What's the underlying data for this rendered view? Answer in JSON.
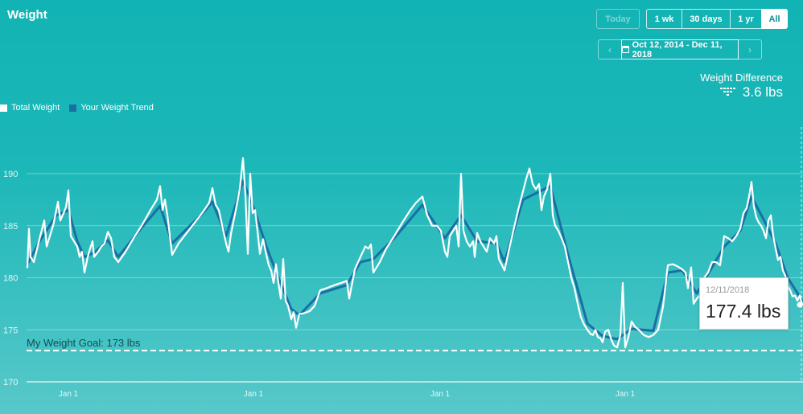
{
  "header": {
    "title": "Weight"
  },
  "controls": {
    "today": "Today",
    "ranges": [
      {
        "label": "1 wk",
        "active": false
      },
      {
        "label": "30 days",
        "active": false
      },
      {
        "label": "1 yr",
        "active": false
      },
      {
        "label": "All",
        "active": true
      }
    ],
    "date_range": "Oct 12, 2014 - Dec 11, 2018",
    "prev_icon": "chevron-left-icon",
    "next_icon": "chevron-right-icon",
    "calendar_icon": "calendar-icon"
  },
  "summary": {
    "label": "Weight Difference",
    "value": "3.6 lbs",
    "icon": "trend-down-icon"
  },
  "legend": [
    {
      "name": "Total Weight",
      "color": "#ffffff"
    },
    {
      "name": "Your Weight Trend",
      "color": "#1a6fa5"
    }
  ],
  "tooltip": {
    "date": "12/11/2018",
    "value": "177.4 lbs"
  },
  "chart_data": {
    "type": "line",
    "ylim": [
      170,
      193
    ],
    "yticks": [
      170,
      175,
      180,
      185,
      190
    ],
    "xlim": [
      0,
      1000
    ],
    "xticks": [
      {
        "x": 85,
        "label": "Jan 1"
      },
      {
        "x": 315,
        "label": "Jan 1"
      },
      {
        "x": 547,
        "label": "Jan 1"
      },
      {
        "x": 777,
        "label": "Jan 1"
      }
    ],
    "goal": {
      "value": 173,
      "label": "My Weight Goal: 173 lbs"
    },
    "series": [
      {
        "name": "Total Weight",
        "color": "#ffffff",
        "points": [
          [
            34,
            181
          ],
          [
            36,
            184.7
          ],
          [
            38,
            182
          ],
          [
            42,
            181.5
          ],
          [
            50,
            184
          ],
          [
            55,
            185.5
          ],
          [
            58,
            183
          ],
          [
            62,
            184
          ],
          [
            66,
            185
          ],
          [
            70,
            186.5
          ],
          [
            72,
            187.3
          ],
          [
            75,
            185.5
          ],
          [
            79,
            186.2
          ],
          [
            82,
            186.8
          ],
          [
            85,
            188.4
          ],
          [
            88,
            184
          ],
          [
            92,
            183.5
          ],
          [
            96,
            183
          ],
          [
            99,
            182
          ],
          [
            102,
            182.5
          ],
          [
            105,
            180.5
          ],
          [
            109,
            182
          ],
          [
            112,
            182.8
          ],
          [
            115,
            183.5
          ],
          [
            117,
            182
          ],
          [
            122,
            182.5
          ],
          [
            126,
            183
          ],
          [
            130,
            183.3
          ],
          [
            134,
            184.4
          ],
          [
            138,
            183.8
          ],
          [
            142,
            182
          ],
          [
            147,
            181.5
          ],
          [
            156,
            182.5
          ],
          [
            166,
            183.8
          ],
          [
            176,
            185
          ],
          [
            187,
            186.5
          ],
          [
            195,
            187.5
          ],
          [
            199,
            188.8
          ],
          [
            202,
            186.5
          ],
          [
            205,
            187.5
          ],
          [
            208,
            186
          ],
          [
            214,
            182.2
          ],
          [
            222,
            183.3
          ],
          [
            232,
            184.3
          ],
          [
            242,
            185.3
          ],
          [
            252,
            186.3
          ],
          [
            260,
            187.2
          ],
          [
            264,
            188.6
          ],
          [
            268,
            187
          ],
          [
            272,
            186.5
          ],
          [
            277,
            184.7
          ],
          [
            281,
            183.3
          ],
          [
            284,
            182.5
          ],
          [
            287,
            184.2
          ],
          [
            293,
            186.5
          ],
          [
            298,
            188.5
          ],
          [
            302,
            191.5
          ],
          [
            305,
            188
          ],
          [
            308,
            182.3
          ],
          [
            311,
            190
          ],
          [
            314,
            186.2
          ],
          [
            317,
            186.5
          ],
          [
            320,
            184.5
          ],
          [
            323,
            182.3
          ],
          [
            327,
            183.7
          ],
          [
            331,
            182.2
          ],
          [
            334,
            181.2
          ],
          [
            337,
            180.7
          ],
          [
            340,
            179.5
          ],
          [
            343,
            181.3
          ],
          [
            346,
            179.5
          ],
          [
            349,
            178
          ],
          [
            352,
            181.8
          ],
          [
            355,
            177.8
          ],
          [
            358,
            177.3
          ],
          [
            362,
            176
          ],
          [
            365,
            176.7
          ],
          [
            368,
            175.2
          ],
          [
            372,
            176.5
          ],
          [
            378,
            176.6
          ],
          [
            385,
            176.8
          ],
          [
            391,
            177.3
          ],
          [
            398,
            178.8
          ],
          [
            406,
            179
          ],
          [
            416,
            179.3
          ],
          [
            424,
            179.5
          ],
          [
            431,
            179.7
          ],
          [
            434,
            178
          ],
          [
            441,
            180.8
          ],
          [
            448,
            182
          ],
          [
            454,
            183
          ],
          [
            458,
            182.8
          ],
          [
            461,
            183.2
          ],
          [
            464,
            180.5
          ],
          [
            472,
            181.5
          ],
          [
            480,
            182.8
          ],
          [
            490,
            184
          ],
          [
            500,
            185.3
          ],
          [
            510,
            186.5
          ],
          [
            517,
            187.2
          ],
          [
            525,
            187.8
          ],
          [
            531,
            186
          ],
          [
            537,
            185
          ],
          [
            543,
            185
          ],
          [
            548,
            184.5
          ],
          [
            553,
            182.5
          ],
          [
            556,
            182
          ],
          [
            559,
            184
          ],
          [
            563,
            184.5
          ],
          [
            567,
            185
          ],
          [
            570,
            183
          ],
          [
            573,
            190
          ],
          [
            576,
            184.5
          ],
          [
            580,
            183.5
          ],
          [
            584,
            183
          ],
          [
            588,
            183.5
          ],
          [
            590,
            182
          ],
          [
            593,
            184.3
          ],
          [
            597,
            183.5
          ],
          [
            601,
            183
          ],
          [
            605,
            182.5
          ],
          [
            609,
            183.8
          ],
          [
            614,
            183.3
          ],
          [
            617,
            184
          ],
          [
            620,
            181.8
          ],
          [
            624,
            181.2
          ],
          [
            627,
            180.7
          ],
          [
            632,
            182.5
          ],
          [
            638,
            184.5
          ],
          [
            644,
            186.5
          ],
          [
            650,
            188.3
          ],
          [
            654,
            189.5
          ],
          [
            658,
            190.5
          ],
          [
            662,
            189
          ],
          [
            666,
            188.5
          ],
          [
            670,
            189
          ],
          [
            673,
            186.5
          ],
          [
            676,
            187.8
          ],
          [
            680,
            188.5
          ],
          [
            684,
            190
          ],
          [
            687,
            186
          ],
          [
            690,
            185
          ],
          [
            694,
            184.5
          ],
          [
            698,
            183.8
          ],
          [
            702,
            183
          ],
          [
            706,
            181.5
          ],
          [
            710,
            180
          ],
          [
            714,
            179
          ],
          [
            718,
            177.5
          ],
          [
            722,
            176.2
          ],
          [
            726,
            175.5
          ],
          [
            730,
            175
          ],
          [
            734,
            174.6
          ],
          [
            737,
            174.5
          ],
          [
            740,
            175
          ],
          [
            743,
            174.3
          ],
          [
            746,
            174.2
          ],
          [
            749,
            173.8
          ],
          [
            752,
            174.8
          ],
          [
            756,
            175
          ],
          [
            760,
            174
          ],
          [
            763,
            173.5
          ],
          [
            767,
            173.3
          ],
          [
            771,
            174.5
          ],
          [
            774,
            179.5
          ],
          [
            777,
            173.3
          ],
          [
            781,
            174.3
          ],
          [
            785,
            175.8
          ],
          [
            789,
            175.3
          ],
          [
            794,
            175
          ],
          [
            800,
            174.5
          ],
          [
            806,
            174.3
          ],
          [
            812,
            174.5
          ],
          [
            818,
            175
          ],
          [
            824,
            177.2
          ],
          [
            830,
            181.2
          ],
          [
            836,
            181.3
          ],
          [
            842,
            181.1
          ],
          [
            848,
            180.8
          ],
          [
            852,
            180.5
          ],
          [
            855,
            179
          ],
          [
            859,
            181
          ],
          [
            862,
            177.5
          ],
          [
            866,
            178
          ],
          [
            870,
            178.3
          ],
          [
            875,
            180
          ],
          [
            880,
            180.5
          ],
          [
            885,
            181.5
          ],
          [
            890,
            181.5
          ],
          [
            895,
            181.2
          ],
          [
            900,
            184
          ],
          [
            905,
            183.8
          ],
          [
            910,
            183.5
          ],
          [
            915,
            184
          ],
          [
            920,
            184.7
          ],
          [
            924,
            186.2
          ],
          [
            928,
            186.7
          ],
          [
            931,
            187.8
          ],
          [
            934,
            189.2
          ],
          [
            937,
            186.8
          ],
          [
            940,
            185.8
          ],
          [
            943,
            185.3
          ],
          [
            946,
            185
          ],
          [
            949,
            184.5
          ],
          [
            952,
            183.8
          ],
          [
            955,
            185.5
          ],
          [
            958,
            186
          ],
          [
            961,
            184
          ],
          [
            964,
            182.8
          ],
          [
            967,
            181.7
          ],
          [
            970,
            182
          ],
          [
            973,
            180.7
          ],
          [
            976,
            180.2
          ],
          [
            979,
            179.2
          ],
          [
            982,
            178.8
          ],
          [
            985,
            178.2
          ],
          [
            988,
            178.3
          ],
          [
            991,
            177.8
          ],
          [
            994,
            178.3
          ],
          [
            997,
            177.4
          ]
        ]
      },
      {
        "name": "Your Weight Trend",
        "color": "#1a6fa5",
        "points": [
          [
            34,
            181.3
          ],
          [
            50,
            183.6
          ],
          [
            70,
            186
          ],
          [
            85,
            186.5
          ],
          [
            96,
            183.5
          ],
          [
            105,
            182
          ],
          [
            117,
            182.4
          ],
          [
            134,
            183.6
          ],
          [
            147,
            182
          ],
          [
            176,
            184.8
          ],
          [
            199,
            186.9
          ],
          [
            214,
            183.3
          ],
          [
            252,
            186.2
          ],
          [
            264,
            187.3
          ],
          [
            281,
            184
          ],
          [
            302,
            189.3
          ],
          [
            314,
            187
          ],
          [
            331,
            183
          ],
          [
            346,
            180
          ],
          [
            362,
            177
          ],
          [
            372,
            176.4
          ],
          [
            398,
            178.5
          ],
          [
            431,
            179.3
          ],
          [
            448,
            181.5
          ],
          [
            464,
            181.8
          ],
          [
            490,
            183.8
          ],
          [
            525,
            187
          ],
          [
            553,
            183.8
          ],
          [
            573,
            186
          ],
          [
            593,
            183.5
          ],
          [
            617,
            183.3
          ],
          [
            627,
            181.5
          ],
          [
            650,
            187.5
          ],
          [
            684,
            188.8
          ],
          [
            706,
            182.2
          ],
          [
            730,
            175.6
          ],
          [
            749,
            174.4
          ],
          [
            767,
            174.1
          ],
          [
            785,
            175.1
          ],
          [
            812,
            174.9
          ],
          [
            830,
            180.5
          ],
          [
            848,
            180.7
          ],
          [
            866,
            178.5
          ],
          [
            900,
            183
          ],
          [
            920,
            184.5
          ],
          [
            934,
            187.8
          ],
          [
            949,
            185.6
          ],
          [
            964,
            183.3
          ],
          [
            979,
            180
          ],
          [
            997,
            177.8
          ]
        ]
      }
    ]
  }
}
